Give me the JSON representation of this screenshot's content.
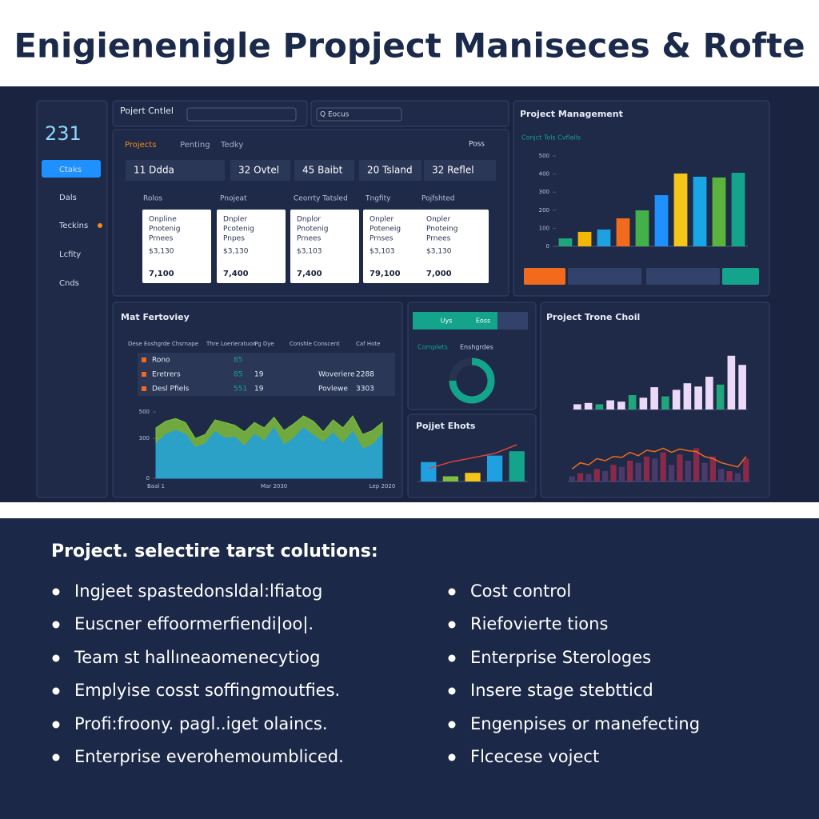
{
  "header": {
    "title": "Enigienenigle Propject Maniseces & Rofte"
  },
  "sidebar": {
    "count": "231",
    "items": [
      "Ctaks",
      "Dals",
      "Teckins",
      "Lcfity",
      "Cnds"
    ]
  },
  "projects_panel": {
    "title": "Pojert Cntlel",
    "search": "Q Eocus",
    "tabs": [
      "Projects",
      "Penting",
      "Tedky"
    ],
    "filter": "Poss",
    "stats": [
      "11 Ddda",
      "32 Ovtel",
      "45 Baibt",
      "20 Tsland",
      "32 Reflel"
    ],
    "columns": [
      "Rolos",
      "Pnojeat",
      "Ceorrty Tatsled",
      "Tngfity",
      "Pojfshted"
    ],
    "cards": [
      {
        "lines": [
          "Onpline",
          "Pnotenig",
          "Prnees"
        ],
        "amount": "$3,130",
        "total": "7,100"
      },
      {
        "lines": [
          "Dnpler",
          "Pcotenig",
          "Pnpes"
        ],
        "amount": "$3,130",
        "total": "7,400"
      },
      {
        "lines": [
          "Dnplor",
          "Pnotenig",
          "Prnees"
        ],
        "amount": "$3,103",
        "total": "7,400"
      },
      {
        "lines": [
          "Onpler",
          "Poteneig",
          "Prnses"
        ],
        "amount": "$3,103",
        "total": "79,100"
      },
      {
        "lines": [
          "Onpler",
          "Pnoteing",
          "Prnees"
        ],
        "amount": "$3,130",
        "total": "7,000"
      }
    ]
  },
  "table": {
    "columns": [
      "Dese Eoshgrde Chsrnape",
      "Thre Loerieratuon",
      "Pg Dye",
      "Conshle Conscent",
      "Caf Hote"
    ],
    "rows": [
      [
        "Rono",
        "85",
        "",
        "",
        ""
      ],
      [
        "Eretrers",
        "85",
        "19",
        "Woveriere",
        "2288"
      ],
      [
        "Desl Pfiels",
        "551",
        "19",
        "Povlewe",
        "3303"
      ]
    ]
  },
  "donut_panel": {
    "tabs": [
      "Uys",
      "Eoss"
    ],
    "legend": "Complets",
    "legend2": "Enshgrdes"
  },
  "chart_data": [
    {
      "type": "bar",
      "title": "Project Management",
      "subtitle": "Conjct Tols Cvflalls",
      "values": [
        44,
        80,
        93,
        155,
        199,
        283,
        403,
        385,
        381,
        407
      ],
      "colors": [
        "#1fa67a",
        "#f5b800",
        "#1fa0e0",
        "#f26a1b",
        "#44b04a",
        "#1e90ff",
        "#f5c518",
        "#19a6e6",
        "#59b33c",
        "#14a38b"
      ],
      "ylim": [
        0,
        500
      ],
      "yticks": [
        0,
        100,
        200,
        300,
        400,
        500
      ]
    },
    {
      "type": "area",
      "title": "Mat Fertoviey",
      "categories": [
        "Baal 1",
        null,
        null,
        null,
        null,
        null,
        null,
        null,
        null,
        null,
        null,
        null,
        "Mar 2030",
        null,
        null,
        null,
        null,
        null,
        null,
        null,
        null,
        null,
        null,
        "Lep 2020"
      ],
      "series": [
        {
          "color": "#7fbf3f",
          "values": [
            380,
            430,
            450,
            420,
            300,
            330,
            440,
            420,
            400,
            350,
            420,
            380,
            460,
            360,
            410,
            470,
            430,
            350,
            440,
            380,
            470,
            330,
            360,
            420
          ]
        },
        {
          "color": "#1fa0e0",
          "values": [
            260,
            330,
            360,
            330,
            230,
            260,
            350,
            300,
            310,
            240,
            330,
            280,
            380,
            250,
            300,
            380,
            320,
            270,
            340,
            260,
            350,
            220,
            250,
            330
          ]
        }
      ],
      "ylim": [
        0,
        500
      ],
      "yticks": [
        0,
        300,
        500
      ]
    },
    {
      "type": "donut",
      "values": [
        75,
        25
      ],
      "colors": [
        "#14a38b",
        "#27344f"
      ]
    },
    {
      "type": "combo",
      "title": "Pojjet Ehots",
      "series": [
        {
          "type": "bar",
          "colors": [
            "#1fa0e0",
            "#7fbf3f",
            "#f5c518",
            "#1fa0e0",
            "#14a38b"
          ],
          "values": [
            45,
            12,
            20,
            60,
            70
          ]
        },
        {
          "type": "line",
          "color": "#e0443a",
          "values": [
            30,
            45,
            55,
            65,
            85
          ]
        }
      ],
      "ylim": [
        0,
        100
      ]
    },
    {
      "type": "bar",
      "title": "Project Trone Choil",
      "values": [
        8,
        10,
        8,
        14,
        12,
        22,
        18,
        34,
        20,
        30,
        40,
        35,
        50,
        38,
        82,
        68
      ],
      "colors": [
        "#ecd9f7",
        "#ecd9f7",
        "#1fa67a",
        "#ecd9f7",
        "#ecd9f7",
        "#1fa67a",
        "#ecd9f7",
        "#ecd9f7",
        "#1fa67a",
        "#ecd9f7",
        "#ecd9f7",
        "#ecd9f7",
        "#ecd9f7",
        "#1fa67a",
        "#ecd9f7",
        "#ecd9f7"
      ],
      "ylim": [
        0,
        100
      ]
    },
    {
      "type": "combo",
      "series": [
        {
          "type": "bar",
          "colors": [
            "#4a3a6a",
            "#8a2a4a"
          ],
          "values": [
            12,
            20,
            18,
            30,
            25,
            40,
            35,
            50,
            45,
            60,
            55,
            70,
            40,
            65,
            50,
            80,
            45,
            60,
            30,
            25,
            20,
            55
          ]
        },
        {
          "type": "line",
          "color": "#f26a1b",
          "values": [
            30,
            45,
            40,
            55,
            50,
            60,
            58,
            70,
            62,
            75,
            72,
            80,
            70,
            78,
            74,
            72,
            60,
            55,
            45,
            40,
            35,
            60
          ]
        }
      ],
      "ylim": [
        0,
        100
      ]
    }
  ],
  "solutions": {
    "heading": "Project. selectire tarst colutions:",
    "left": [
      "Ingjeet spastedonsldal:lfiatog",
      "Euscner effoormerfiendi|oo|.",
      "Team st hallıneaomenecytiog",
      "Emplyise cosst soffingmoutfies.",
      "Profi:froony. pagl..iget olaincs.",
      "Enterprise everohemoumbliced."
    ],
    "right": [
      "Cost control",
      "Riefovierte tions",
      "Enterprise Sterologes",
      "Insere stage stebtticd",
      "Engenpises or manefecting",
      "Flcecese voject"
    ]
  }
}
